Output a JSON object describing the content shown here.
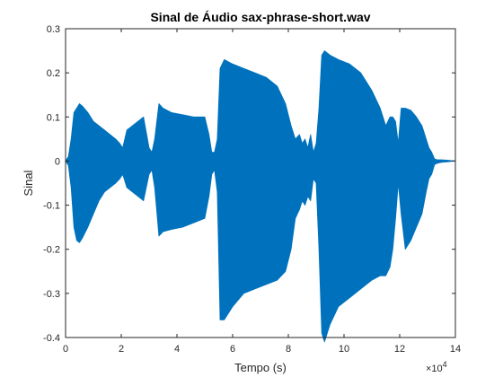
{
  "chart_data": {
    "type": "line",
    "title": "Sinal de Áudio sax-phrase-short.wav",
    "xlabel": "Tempo (s)",
    "ylabel": "Sinal",
    "x_multiplier_label": "×10",
    "x_multiplier_exponent": "4",
    "xlim": [
      0,
      140000
    ],
    "ylim": [
      -0.4,
      0.3
    ],
    "x_ticks": [
      0,
      20000,
      40000,
      60000,
      80000,
      100000,
      120000,
      140000
    ],
    "x_tick_labels": [
      "0",
      "2",
      "4",
      "6",
      "8",
      "10",
      "12",
      "14"
    ],
    "y_ticks": [
      -0.4,
      -0.3,
      -0.2,
      -0.1,
      0,
      0.1,
      0.2,
      0.3
    ],
    "y_tick_labels": [
      "-0.4",
      "-0.3",
      "-0.2",
      "-0.1",
      "0",
      "0.1",
      "0.2",
      "0.3"
    ],
    "grid": false,
    "color": "#0072BD",
    "series": [
      {
        "envelope_x": [
          0,
          1000,
          2000,
          3000,
          4000,
          5000,
          6000,
          8000,
          10000,
          12000,
          14000,
          16000,
          18000,
          19500,
          20500,
          22000,
          24000,
          26000,
          28000,
          30000,
          31000,
          32000,
          33500,
          35000,
          38000,
          42000,
          46000,
          50000,
          51500,
          52500,
          53500,
          54500,
          55500,
          57000,
          60000,
          64000,
          68000,
          72000,
          76000,
          79000,
          81000,
          82500,
          84000,
          85000,
          86000,
          87000,
          88000,
          89000,
          90000,
          91000,
          92000,
          93000,
          95000,
          98000,
          102000,
          106000,
          110000,
          113000,
          115000,
          116500,
          117500,
          118500,
          119500,
          120500,
          122000,
          124000,
          126000,
          128000,
          129500,
          130500,
          131500,
          132500,
          133500,
          135000,
          137000,
          140000
        ],
        "upper": [
          0.0,
          0.01,
          0.05,
          0.11,
          0.12,
          0.13,
          0.125,
          0.11,
          0.09,
          0.08,
          0.07,
          0.06,
          0.05,
          0.04,
          0.03,
          0.07,
          0.08,
          0.09,
          0.1,
          0.03,
          0.02,
          0.05,
          0.13,
          0.12,
          0.11,
          0.105,
          0.1,
          0.1,
          0.06,
          0.02,
          0.02,
          0.05,
          0.21,
          0.23,
          0.22,
          0.21,
          0.2,
          0.19,
          0.17,
          0.13,
          0.08,
          0.05,
          0.06,
          0.04,
          0.05,
          0.03,
          0.06,
          0.02,
          0.04,
          0.12,
          0.24,
          0.25,
          0.24,
          0.23,
          0.22,
          0.2,
          0.16,
          0.12,
          0.08,
          0.1,
          0.1,
          0.09,
          0.04,
          0.12,
          0.12,
          0.115,
          0.1,
          0.08,
          0.05,
          0.03,
          0.02,
          0.005,
          0.003,
          0.003,
          0.002,
          0.0
        ],
        "lower": [
          0.0,
          -0.01,
          -0.06,
          -0.15,
          -0.18,
          -0.185,
          -0.175,
          -0.15,
          -0.12,
          -0.09,
          -0.07,
          -0.06,
          -0.05,
          -0.04,
          -0.03,
          -0.06,
          -0.07,
          -0.08,
          -0.09,
          -0.03,
          -0.02,
          -0.06,
          -0.17,
          -0.16,
          -0.155,
          -0.15,
          -0.14,
          -0.13,
          -0.08,
          -0.03,
          -0.02,
          -0.07,
          -0.36,
          -0.36,
          -0.33,
          -0.3,
          -0.29,
          -0.28,
          -0.27,
          -0.25,
          -0.2,
          -0.13,
          -0.11,
          -0.09,
          -0.1,
          -0.08,
          -0.09,
          -0.04,
          -0.05,
          -0.2,
          -0.39,
          -0.41,
          -0.37,
          -0.33,
          -0.31,
          -0.29,
          -0.27,
          -0.26,
          -0.26,
          -0.24,
          -0.2,
          -0.13,
          -0.05,
          -0.12,
          -0.2,
          -0.18,
          -0.15,
          -0.12,
          -0.07,
          -0.04,
          -0.03,
          -0.008,
          -0.005,
          -0.003,
          -0.002,
          0.0
        ]
      }
    ]
  }
}
